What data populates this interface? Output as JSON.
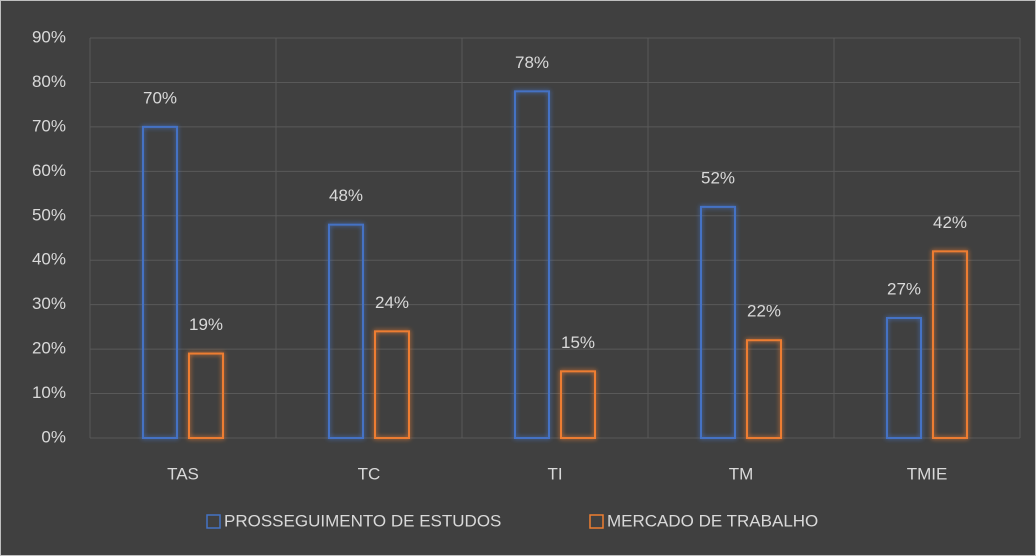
{
  "chart_data": {
    "type": "bar",
    "categories": [
      "TAS",
      "TC",
      "TI",
      "TM",
      "TMIE"
    ],
    "series": [
      {
        "name": "PROSSEGUIMENTO DE ESTUDOS",
        "color": "#4472c4",
        "values": [
          70,
          48,
          78,
          52,
          27
        ],
        "value_labels": [
          "70%",
          "48%",
          "78%",
          "52%",
          "27%"
        ]
      },
      {
        "name": "MERCADO DE TRABALHO",
        "color": "#ed7d31",
        "values": [
          19,
          24,
          15,
          22,
          42
        ],
        "value_labels": [
          "19%",
          "24%",
          "15%",
          "22%",
          "42%"
        ]
      }
    ],
    "ylim": [
      0,
      90
    ],
    "yticks": [
      {
        "value": 0,
        "label": "0%"
      },
      {
        "value": 10,
        "label": "10%"
      },
      {
        "value": 20,
        "label": "20%"
      },
      {
        "value": 30,
        "label": "30%"
      },
      {
        "value": 40,
        "label": "40%"
      },
      {
        "value": 50,
        "label": "50%"
      },
      {
        "value": 60,
        "label": "60%"
      },
      {
        "value": 70,
        "label": "70%"
      },
      {
        "value": 80,
        "label": "80%"
      },
      {
        "value": 90,
        "label": "90%"
      }
    ],
    "grid": true,
    "legend": "bottom"
  }
}
